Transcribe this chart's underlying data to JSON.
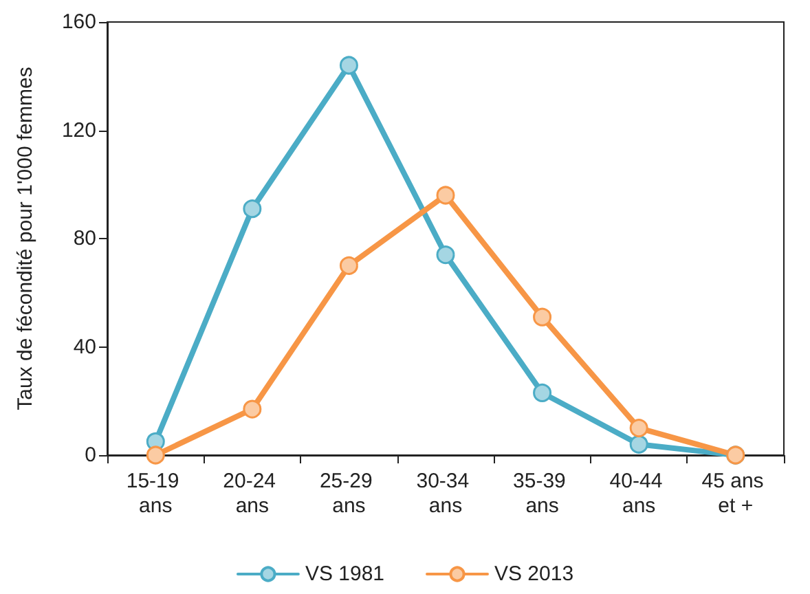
{
  "chart_data": {
    "type": "line",
    "ylabel": "Taux de fécondité pour 1'000 femmes",
    "categories": [
      "15-19 ans",
      "20-24 ans",
      "25-29 ans",
      "30-34 ans",
      "35-39 ans",
      "40-44 ans",
      "45 ans et +"
    ],
    "series": [
      {
        "name": "VS 1981",
        "color": "#4bacc6",
        "values": [
          5,
          91,
          144,
          74,
          23,
          4,
          0
        ]
      },
      {
        "name": "VS 2013",
        "color": "#f79646",
        "values": [
          0,
          17,
          70,
          96,
          51,
          10,
          0
        ]
      }
    ],
    "ylim": [
      0,
      160
    ],
    "yticks": [
      0,
      40,
      80,
      120,
      160
    ],
    "grid": false,
    "legend": "bottom",
    "marker": "circle",
    "line_style": "solid"
  }
}
